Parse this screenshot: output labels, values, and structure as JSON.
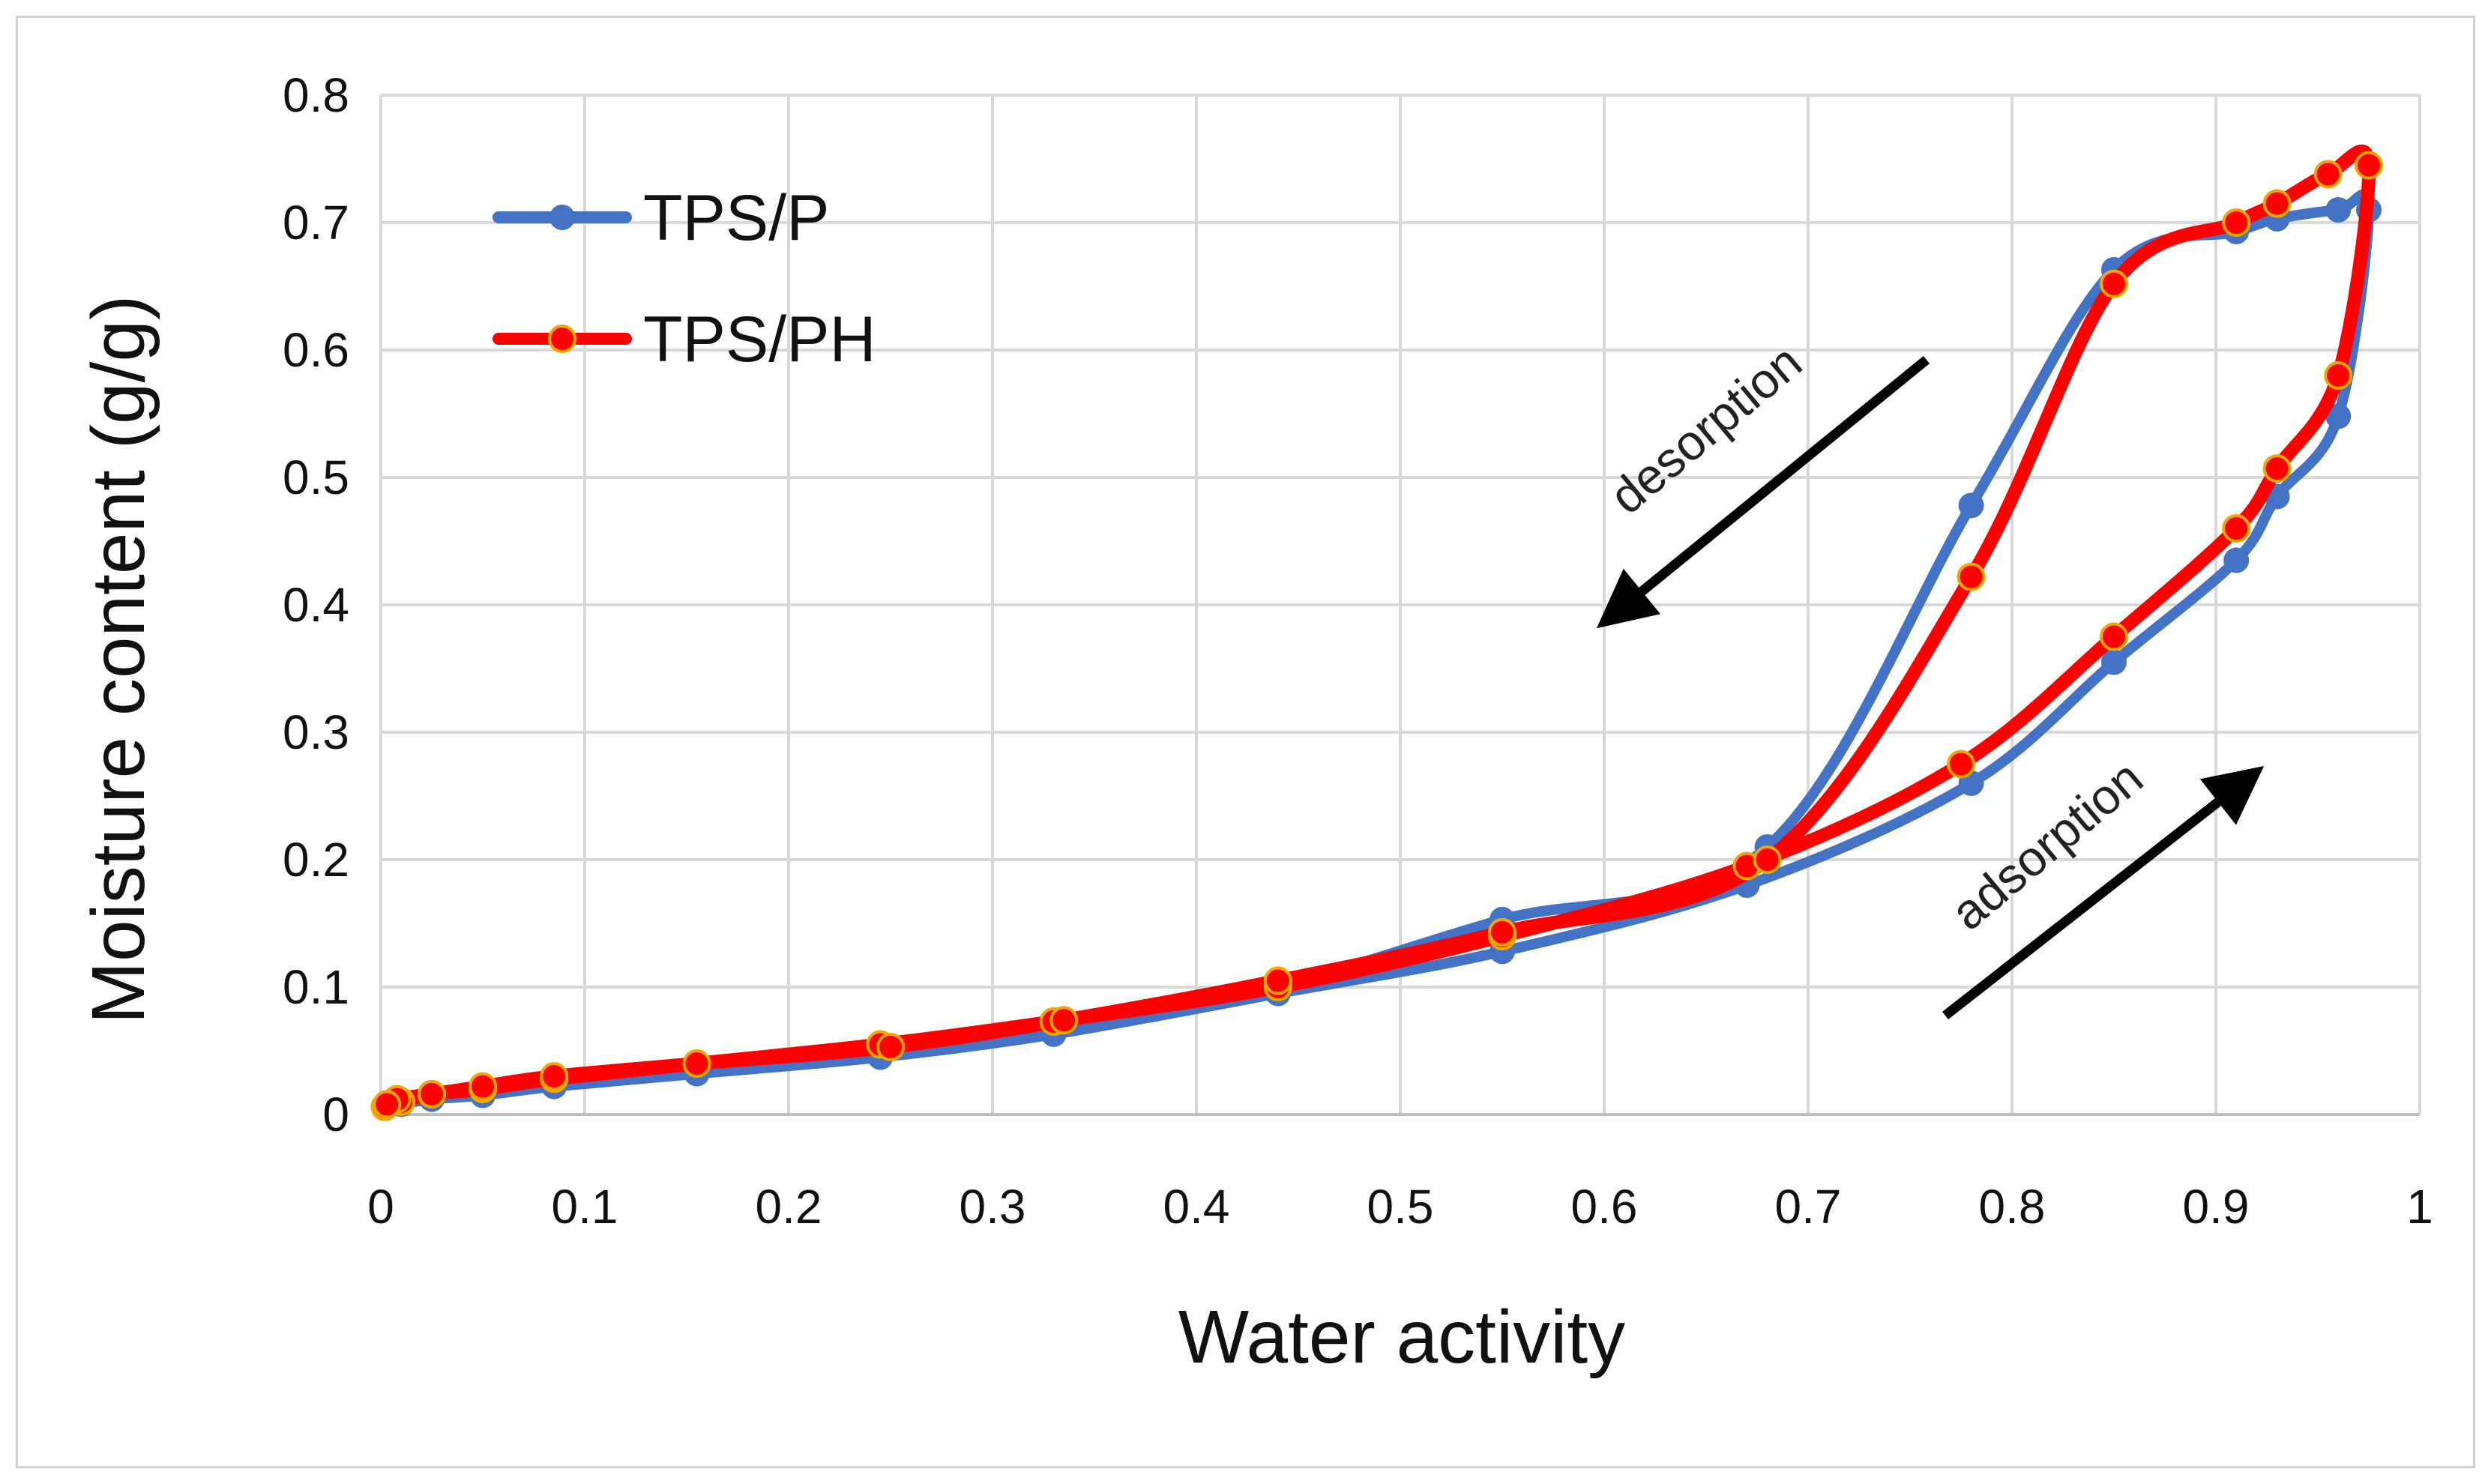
{
  "chart_data": {
    "type": "line",
    "xlabel": "Water activity",
    "ylabel": "Moisture content (g/g)",
    "xlim": [
      0,
      1
    ],
    "ylim": [
      0,
      0.8
    ],
    "x_ticks": [
      "0",
      "0.1",
      "0.2",
      "0.3",
      "0.4",
      "0.5",
      "0.6",
      "0.7",
      "0.8",
      "0.9",
      "1"
    ],
    "y_ticks": [
      "0",
      "0.1",
      "0.2",
      "0.3",
      "0.4",
      "0.5",
      "0.6",
      "0.7",
      "0.8"
    ],
    "grid": true,
    "legend_position": "top-left",
    "series": [
      {
        "name": "TPS/P",
        "color": "#4472C4",
        "x": [
          0.002,
          0.01,
          0.025,
          0.05,
          0.085,
          0.155,
          0.245,
          0.33,
          0.44,
          0.55,
          0.67,
          0.78,
          0.85,
          0.91,
          0.93,
          0.96,
          0.975,
          0.96,
          0.93,
          0.91,
          0.85,
          0.78,
          0.68,
          0.55,
          0.44,
          0.335,
          0.25,
          0.155,
          0.085,
          0.05,
          0.025,
          0.008,
          0.003
        ],
        "y": [
          0.005,
          0.008,
          0.012,
          0.015,
          0.022,
          0.032,
          0.045,
          0.063,
          0.095,
          0.128,
          0.18,
          0.26,
          0.355,
          0.435,
          0.485,
          0.548,
          0.71,
          0.71,
          0.703,
          0.693,
          0.663,
          0.478,
          0.21,
          0.153,
          0.101,
          0.072,
          0.052,
          0.038,
          0.028,
          0.02,
          0.014,
          0.01,
          0.007
        ]
      },
      {
        "name": "TPS/PH",
        "color": "#FF0000",
        "x": [
          0.002,
          0.01,
          0.025,
          0.05,
          0.085,
          0.155,
          0.245,
          0.33,
          0.44,
          0.55,
          0.67,
          0.775,
          0.85,
          0.91,
          0.93,
          0.96,
          0.975,
          0.955,
          0.93,
          0.91,
          0.85,
          0.78,
          0.68,
          0.55,
          0.44,
          0.335,
          0.25,
          0.155,
          0.085,
          0.05,
          0.025,
          0.008,
          0.003
        ],
        "y": [
          0.006,
          0.01,
          0.016,
          0.02,
          0.028,
          0.04,
          0.055,
          0.073,
          0.1,
          0.14,
          0.195,
          0.275,
          0.375,
          0.46,
          0.507,
          0.58,
          0.745,
          0.738,
          0.715,
          0.7,
          0.652,
          0.422,
          0.2,
          0.143,
          0.105,
          0.074,
          0.053,
          0.04,
          0.03,
          0.022,
          0.016,
          0.012,
          0.008
        ]
      }
    ],
    "annotations": [
      {
        "text": "desorption"
      },
      {
        "text": "adsorption"
      }
    ]
  }
}
